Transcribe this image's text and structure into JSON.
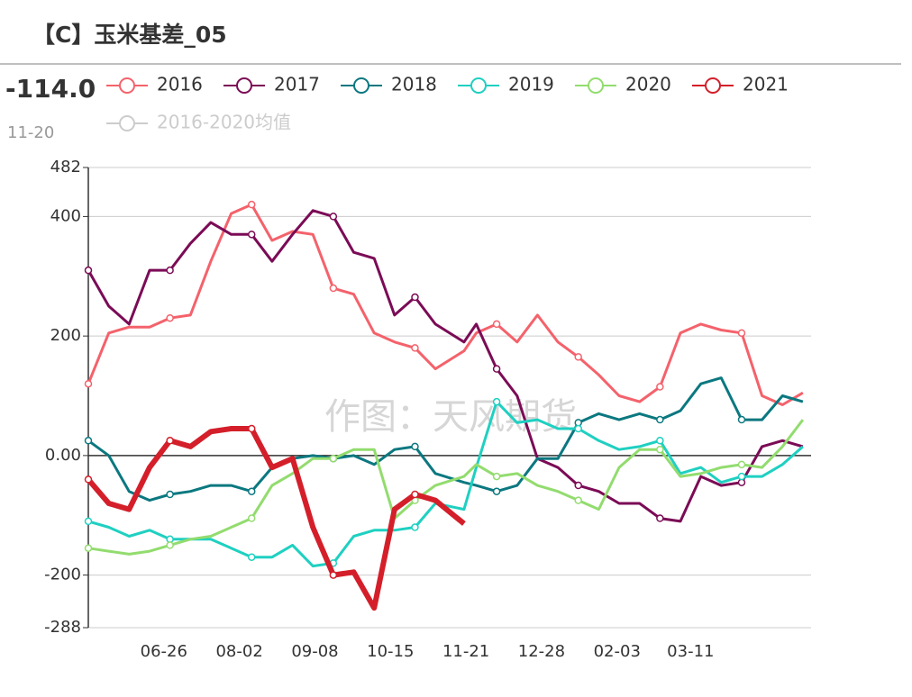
{
  "title": "【C】玉米基差_05",
  "latest": {
    "value": -114,
    "label": "-114.0",
    "date": "11-20"
  },
  "chart_data": {
    "type": "line",
    "x": [
      "05-20",
      "05-30",
      "06-09",
      "06-19",
      "06-29",
      "07-09",
      "07-19",
      "07-29",
      "08-08",
      "08-18",
      "08-28",
      "09-07",
      "09-17",
      "09-27",
      "10-07",
      "10-17",
      "10-27",
      "11-06",
      "11-20",
      "11-26",
      "12-06",
      "12-16",
      "12-26",
      "01-05",
      "01-15",
      "01-25",
      "02-04",
      "02-14",
      "02-24",
      "03-06",
      "03-16",
      "03-26",
      "04-05",
      "04-15",
      "04-25",
      "05-05"
    ],
    "series": [
      {
        "name": "2016",
        "color": "#f4626b",
        "values": [
          120,
          205,
          215,
          215,
          230,
          235,
          325,
          405,
          420,
          360,
          375,
          370,
          280,
          270,
          205,
          190,
          180,
          145,
          175,
          205,
          220,
          190,
          235,
          190,
          165,
          135,
          100,
          90,
          115,
          205,
          220,
          210,
          205,
          100,
          85,
          105
        ]
      },
      {
        "name": "2017",
        "color": "#7b0b56",
        "values": [
          310,
          250,
          220,
          310,
          310,
          355,
          390,
          370,
          370,
          325,
          370,
          410,
          400,
          340,
          330,
          235,
          265,
          220,
          190,
          220,
          145,
          100,
          -5,
          -20,
          -50,
          -60,
          -80,
          -80,
          -105,
          -110,
          -35,
          -50,
          -45,
          15,
          25,
          15
        ]
      },
      {
        "name": "2018",
        "color": "#0b7880",
        "values": [
          25,
          0,
          -60,
          -75,
          -65,
          -60,
          -50,
          -50,
          -60,
          -20,
          -5,
          0,
          -5,
          0,
          -15,
          10,
          15,
          -30,
          -45,
          -50,
          -60,
          -50,
          -5,
          -5,
          55,
          70,
          60,
          70,
          60,
          75,
          120,
          130,
          60,
          60,
          100,
          90
        ]
      },
      {
        "name": "2019",
        "color": "#1fd0c1",
        "values": [
          -110,
          -120,
          -135,
          -125,
          -140,
          -140,
          -140,
          -155,
          -170,
          -170,
          -150,
          -185,
          -180,
          -135,
          -125,
          -125,
          -120,
          -80,
          -90,
          -20,
          90,
          55,
          60,
          45,
          45,
          25,
          10,
          15,
          25,
          -30,
          -20,
          -45,
          -35,
          -35,
          -15,
          15
        ]
      },
      {
        "name": "2020",
        "color": "#92dc6e",
        "values": [
          -155,
          -160,
          -165,
          -160,
          -150,
          -140,
          -135,
          -120,
          -105,
          -50,
          -30,
          -5,
          -5,
          10,
          10,
          -105,
          -75,
          -50,
          -35,
          -15,
          -35,
          -30,
          -50,
          -60,
          -75,
          -90,
          -20,
          10,
          10,
          -35,
          -30,
          -20,
          -15,
          -20,
          15,
          60
        ]
      },
      {
        "name": "2021",
        "color": "#d41f2a",
        "values": [
          -40,
          -80,
          -90,
          -20,
          25,
          15,
          40,
          45,
          45,
          -20,
          -5,
          -120,
          -200,
          -195,
          -255,
          -90,
          -65,
          -75,
          -114,
          null,
          null,
          null,
          null,
          null,
          null,
          null,
          null,
          null,
          null,
          null,
          null,
          null,
          null,
          null,
          null,
          null
        ]
      }
    ],
    "legend_inactive": [
      "2016-2020均值"
    ],
    "watermark": "作图：天风期货",
    "xlim": [
      "05-20",
      "05-09"
    ],
    "xticks": [
      "06-26",
      "08-02",
      "09-08",
      "10-15",
      "11-21",
      "12-28",
      "02-03",
      "03-11"
    ],
    "ylim": [
      -288,
      482
    ],
    "yticks": [
      482,
      400,
      200,
      {
        "value": 0,
        "label": "0.00"
      },
      -200,
      -288
    ],
    "grid": true
  }
}
